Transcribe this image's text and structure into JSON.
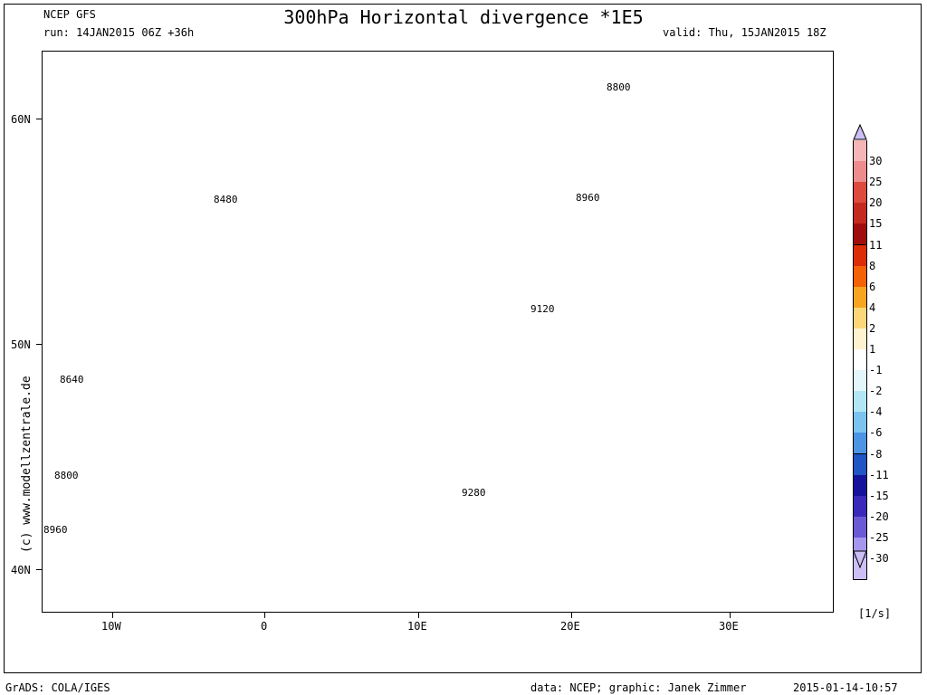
{
  "header": {
    "model": "NCEP GFS",
    "run": "run: 14JAN2015 06Z +36h",
    "title": "300hPa Horizontal divergence *1E5",
    "valid": "valid: Thu, 15JAN2015 18Z"
  },
  "map": {
    "lat_labels": [
      "60N",
      "50N",
      "40N"
    ],
    "lon_labels": [
      "10W",
      "0",
      "10E",
      "20E",
      "30E"
    ],
    "contour_labels": [
      "8800",
      "8480",
      "8960",
      "9120",
      "8640",
      "8800",
      "9280",
      "8960"
    ]
  },
  "colorbar": {
    "unit": "[1/s]",
    "levels": [
      "30",
      "25",
      "20",
      "15",
      "11",
      "8",
      "6",
      "4",
      "2",
      "1",
      "-1",
      "-2",
      "-4",
      "-6",
      "-8",
      "-11",
      "-15",
      "-20",
      "-25",
      "-30"
    ],
    "colors": [
      "#f4b6b6",
      "#ec8c8c",
      "#dc4b3b",
      "#c52a1f",
      "#a10d0d",
      "#dc2c08",
      "#f46208",
      "#f7a521",
      "#fbd77a",
      "#fff3cf",
      "#ffffff",
      "#e2f6fb",
      "#b3e6f4",
      "#7cc4ef",
      "#4d94e4",
      "#1f55c4",
      "#15129c",
      "#3a2ab9",
      "#6b5ad6",
      "#a796ee",
      "#ccbff5"
    ]
  },
  "footer": {
    "grads": "GrADS: COLA/IGES",
    "credits": "data: NCEP; graphic: Janek Zimmer",
    "timestamp": "2015-01-14-10:57"
  },
  "watermark": "(c) www.modellzentrale.de"
}
